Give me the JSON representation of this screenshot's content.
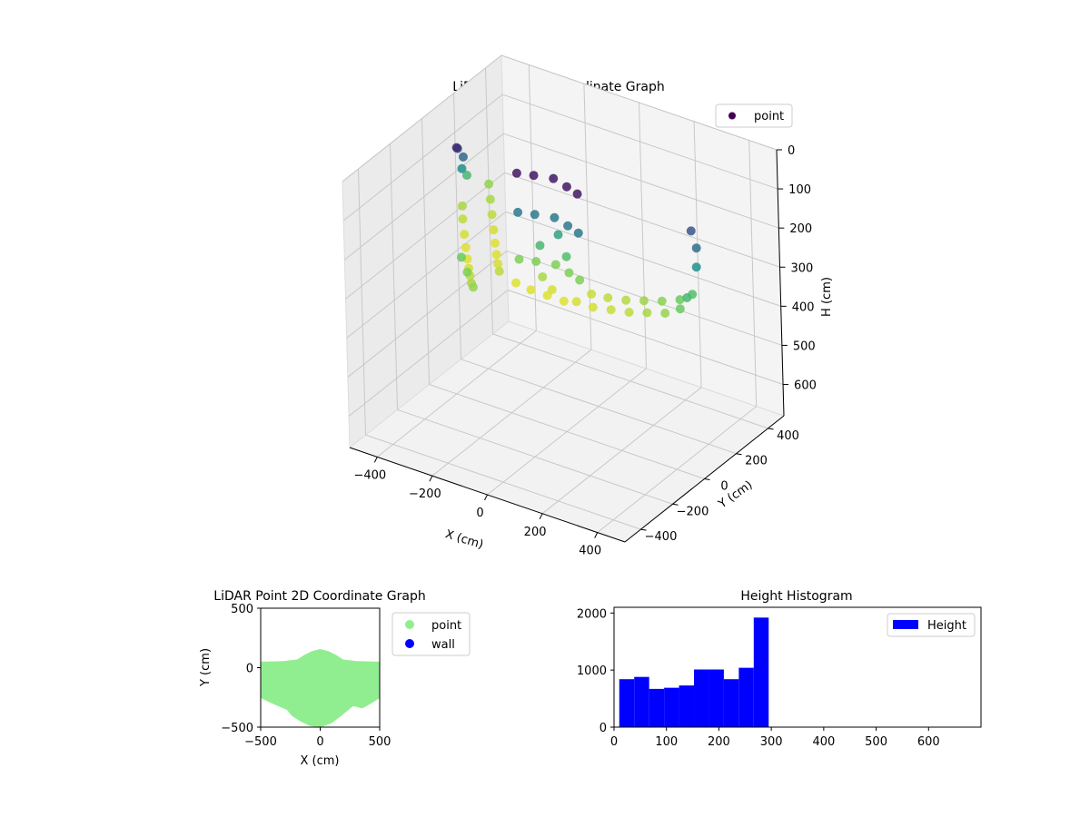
{
  "colors": {
    "viridis_dark": "#440154",
    "viridis_mid": "#21918c",
    "viridis_light": "#fde725",
    "point_2d": "#90ee90",
    "wall_2d": "#0000ff",
    "histogram": "#0000ff"
  },
  "chart_data": [
    {
      "type": "scatter3d",
      "title": "LiDAR Point 3D Coordinate Graph",
      "xlabel": "X (cm)",
      "ylabel": "Y (cm)",
      "zlabel": "H (cm)",
      "xlim": [
        -500,
        500
      ],
      "ylim": [
        -500,
        500
      ],
      "zlim": [
        0,
        680
      ],
      "z_inverted": true,
      "xticks": [
        -400,
        -200,
        0,
        200,
        400
      ],
      "yticks": [
        -400,
        -200,
        0,
        200,
        400
      ],
      "zticks": [
        0,
        100,
        200,
        300,
        400,
        500,
        600
      ],
      "colormap": "viridis",
      "legend": {
        "placement": "top-right",
        "entries": [
          "point"
        ]
      },
      "grid": true,
      "series": [
        {
          "name": "point",
          "points": [
            [
              -110,
              -80,
              20
            ],
            [
              -60,
              -60,
              20
            ],
            [
              0,
              -40,
              20
            ],
            [
              60,
              -60,
              20
            ],
            [
              110,
              -80,
              20
            ],
            [
              -110,
              -80,
              120
            ],
            [
              -60,
              -60,
              120
            ],
            [
              0,
              -40,
              120
            ],
            [
              60,
              -60,
              120
            ],
            [
              110,
              -80,
              120
            ],
            [
              -110,
              -80,
              240
            ],
            [
              -60,
              -60,
              240
            ],
            [
              0,
              -40,
              240
            ],
            [
              60,
              -60,
              240
            ],
            [
              110,
              -80,
              240
            ],
            [
              -50,
              -50,
              200
            ],
            [
              0,
              -20,
              170
            ],
            [
              40,
              -40,
              210
            ],
            [
              -20,
              -90,
              260
            ],
            [
              20,
              -100,
              280
            ],
            [
              -450,
              150,
              260
            ],
            [
              -420,
              100,
              270
            ],
            [
              -380,
              40,
              280
            ],
            [
              -340,
              -20,
              285
            ],
            [
              -300,
              -80,
              285
            ],
            [
              -260,
              -140,
              280
            ],
            [
              -220,
              -200,
              270
            ],
            [
              -180,
              -260,
              260
            ],
            [
              -440,
              300,
              250
            ],
            [
              -400,
              240,
              260
            ],
            [
              -360,
              180,
              270
            ],
            [
              -320,
              120,
              280
            ],
            [
              -280,
              60,
              285
            ],
            [
              -240,
              0,
              285
            ],
            [
              -200,
              -60,
              280
            ],
            [
              -160,
              -120,
              270
            ],
            [
              -460,
              200,
              200
            ],
            [
              -430,
              120,
              150
            ],
            [
              -400,
              80,
              100
            ],
            [
              -390,
              30,
              60
            ],
            [
              -370,
              -10,
              40
            ],
            [
              -250,
              -200,
              230
            ],
            [
              -200,
              -250,
              240
            ],
            [
              -150,
              -300,
              250
            ],
            [
              120,
              -120,
              280
            ],
            [
              180,
              -120,
              280
            ],
            [
              240,
              -110,
              275
            ],
            [
              300,
              -100,
              270
            ],
            [
              360,
              -90,
              260
            ],
            [
              420,
              -80,
              250
            ],
            [
              470,
              -70,
              230
            ],
            [
              490,
              -60,
              200
            ],
            [
              140,
              -60,
              275
            ],
            [
              200,
              -60,
              270
            ],
            [
              260,
              -50,
              265
            ],
            [
              320,
              -40,
              255
            ],
            [
              380,
              -30,
              245
            ],
            [
              440,
              -20,
              230
            ],
            [
              480,
              -10,
              210
            ],
            [
              480,
              20,
              150
            ],
            [
              470,
              40,
              110
            ],
            [
              440,
              60,
              80
            ],
            [
              -100,
              -120,
              285
            ],
            [
              -40,
              -130,
              285
            ],
            [
              20,
              -130,
              285
            ],
            [
              80,
              -130,
              285
            ]
          ]
        }
      ]
    },
    {
      "type": "scatter",
      "title": "LiDAR Point 2D Coordinate Graph",
      "xlabel": "X (cm)",
      "ylabel": "Y (cm)",
      "xlim": [
        -500,
        500
      ],
      "ylim": [
        -500,
        500
      ],
      "xticks": [
        -500,
        0,
        500
      ],
      "yticks": [
        -500,
        0,
        500
      ],
      "legend": {
        "placement": "outside-right",
        "entries": [
          "point",
          "wall"
        ]
      },
      "series": [
        {
          "name": "point",
          "outline": [
            [
              -500,
              20
            ],
            [
              -300,
              25
            ],
            [
              -180,
              40
            ],
            [
              -120,
              80
            ],
            [
              -60,
              110
            ],
            [
              0,
              125
            ],
            [
              60,
              110
            ],
            [
              120,
              80
            ],
            [
              180,
              40
            ],
            [
              300,
              25
            ],
            [
              500,
              20
            ],
            [
              500,
              -220
            ],
            [
              420,
              -270
            ],
            [
              350,
              -310
            ],
            [
              270,
              -290
            ],
            [
              220,
              -330
            ],
            [
              160,
              -380
            ],
            [
              80,
              -440
            ],
            [
              0,
              -470
            ],
            [
              -80,
              -460
            ],
            [
              -160,
              -420
            ],
            [
              -220,
              -380
            ],
            [
              -260,
              -330
            ],
            [
              -330,
              -300
            ],
            [
              -420,
              -260
            ],
            [
              -500,
              -220
            ]
          ]
        },
        {
          "name": "wall",
          "points": []
        }
      ]
    },
    {
      "type": "bar",
      "title": "Height Histogram",
      "xlim": [
        0,
        700
      ],
      "ylim": [
        0,
        2100
      ],
      "xticks": [
        0,
        100,
        200,
        300,
        400,
        500,
        600
      ],
      "yticks": [
        0,
        1000,
        2000
      ],
      "legend": {
        "placement": "top-right",
        "entries": [
          "Height"
        ]
      },
      "series": [
        {
          "name": "Height",
          "bin_edges": [
            10,
            38.5,
            67,
            95.5,
            124,
            152.5,
            181,
            209.5,
            238,
            266.5,
            295
          ],
          "values": [
            840,
            880,
            670,
            690,
            730,
            1010,
            1010,
            840,
            1040,
            1920
          ]
        }
      ]
    }
  ]
}
